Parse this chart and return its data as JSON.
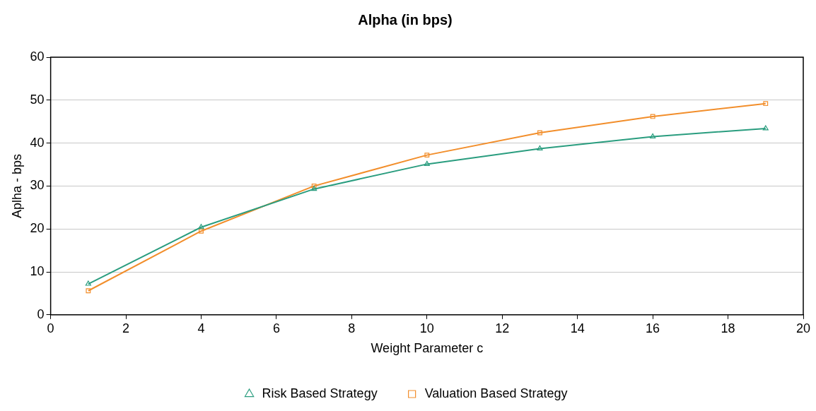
{
  "chart_data": {
    "type": "line",
    "title": "Alpha (in bps)",
    "xlabel": "Weight Parameter c",
    "ylabel": "Aplha - bps",
    "x": [
      1,
      4,
      7,
      10,
      13,
      16,
      19
    ],
    "series": [
      {
        "name": "Risk Based Strategy",
        "color": "#2a9d7f",
        "marker": "triangle",
        "values": [
          7.2,
          20.4,
          29.3,
          35.1,
          38.7,
          41.5,
          43.4
        ]
      },
      {
        "name": "Valuation Based Strategy",
        "color": "#f28e2b",
        "marker": "square",
        "values": [
          5.6,
          19.5,
          30.0,
          37.2,
          42.4,
          46.2,
          49.2
        ]
      }
    ],
    "xlim": [
      0,
      20
    ],
    "xticks": [
      0,
      2,
      4,
      6,
      8,
      10,
      12,
      14,
      16,
      18,
      20
    ],
    "ylim": [
      0,
      60
    ],
    "yticks": [
      0,
      10,
      20,
      30,
      40,
      50,
      60
    ],
    "grid": "y",
    "legend": "bottom",
    "line_style": "solid"
  }
}
